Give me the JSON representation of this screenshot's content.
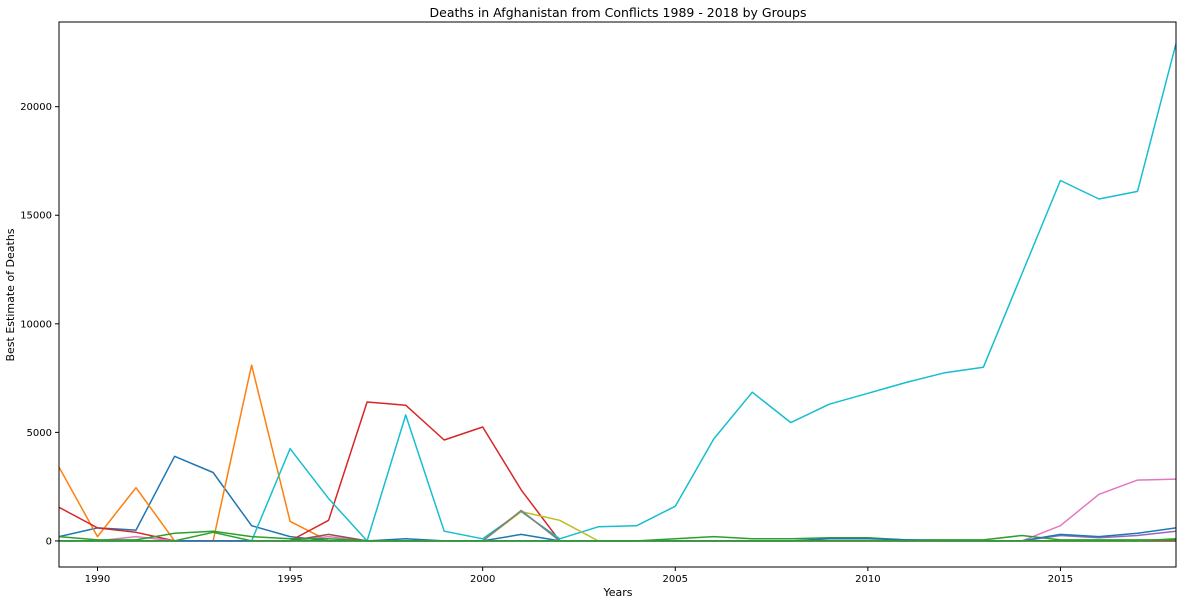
{
  "chart_data": {
    "type": "line",
    "title": "Deaths in Afghanistan from Conflicts 1989 - 2018 by Groups",
    "xlabel": "Years",
    "ylabel": "Best Estimate of Deaths",
    "xlim": [
      1989,
      2018
    ],
    "ylim": [
      -1200,
      23900
    ],
    "x_ticks": [
      "1990",
      "1995",
      "2000",
      "2005",
      "2010",
      "2015"
    ],
    "y_ticks": [
      "0",
      "5000",
      "10000",
      "15000",
      "20000"
    ],
    "grid": false,
    "legend": "none",
    "x": [
      1989,
      1990,
      1991,
      1992,
      1993,
      1994,
      1995,
      1996,
      1997,
      1998,
      1999,
      2000,
      2001,
      2002,
      2003,
      2004,
      2005,
      2006,
      2007,
      2008,
      2009,
      2010,
      2011,
      2012,
      2013,
      2014,
      2015,
      2016,
      2017,
      2018
    ],
    "series": [
      {
        "color": "#1f77b4",
        "values": [
          200,
          600,
          500,
          3900,
          3150,
          700,
          200,
          0,
          0,
          100,
          0,
          0,
          300,
          0,
          0,
          0,
          0,
          0,
          0,
          0,
          0,
          0,
          0,
          0,
          0,
          0,
          0,
          0,
          0,
          0
        ]
      },
      {
        "color": "#ff7f0e",
        "values": [
          3400,
          200,
          2450,
          0,
          0,
          8100,
          900,
          0,
          0,
          0,
          0,
          0,
          0,
          0,
          0,
          0,
          0,
          0,
          0,
          0,
          0,
          0,
          0,
          0,
          0,
          0,
          0,
          0,
          0,
          0
        ]
      },
      {
        "color": "#d62728",
        "values": [
          1550,
          600,
          400,
          0,
          0,
          0,
          0,
          950,
          6400,
          6250,
          4650,
          5250,
          2350,
          0,
          0,
          0,
          0,
          0,
          0,
          0,
          0,
          0,
          0,
          0,
          0,
          0,
          0,
          0,
          0,
          0
        ]
      },
      {
        "color": "#17becf",
        "values": [
          0,
          0,
          0,
          0,
          0,
          0,
          4250,
          1950,
          0,
          5800,
          450,
          100,
          1350,
          100,
          650,
          700,
          1600,
          4700,
          6850,
          5450,
          6300,
          6800,
          7300,
          7750,
          8000,
          12300,
          16600,
          15750,
          16100,
          22900
        ]
      },
      {
        "color": "#bcbd22",
        "values": [
          0,
          0,
          0,
          0,
          0,
          0,
          0,
          0,
          0,
          0,
          0,
          0,
          1350,
          950,
          0,
          0,
          0,
          0,
          0,
          0,
          0,
          0,
          0,
          0,
          0,
          0,
          0,
          0,
          0,
          0
        ]
      },
      {
        "color": "#7f7f7f",
        "values": [
          0,
          0,
          0,
          0,
          0,
          0,
          0,
          0,
          0,
          0,
          0,
          0,
          1400,
          0,
          0,
          0,
          0,
          0,
          0,
          0,
          0,
          0,
          0,
          0,
          0,
          0,
          0,
          0,
          0,
          0
        ]
      },
      {
        "color": "#9467bd",
        "values": [
          0,
          0,
          0,
          0,
          0,
          0,
          0,
          0,
          0,
          0,
          0,
          0,
          0,
          0,
          0,
          0,
          0,
          0,
          0,
          0,
          0,
          0,
          0,
          0,
          0,
          0,
          250,
          150,
          250,
          450
        ]
      },
      {
        "color": "#e377c2",
        "values": [
          0,
          0,
          200,
          0,
          0,
          0,
          0,
          200,
          0,
          0,
          0,
          0,
          0,
          0,
          0,
          0,
          0,
          0,
          0,
          0,
          0,
          0,
          0,
          0,
          0,
          0,
          700,
          2150,
          2800,
          2850
        ]
      },
      {
        "color": "#8c564b",
        "values": [
          0,
          0,
          0,
          0,
          0,
          0,
          0,
          300,
          0,
          0,
          0,
          0,
          0,
          0,
          0,
          0,
          0,
          0,
          0,
          0,
          0,
          0,
          0,
          0,
          0,
          0,
          0,
          0,
          0,
          0
        ]
      },
      {
        "color": "#2ca02c",
        "values": [
          200,
          50,
          50,
          350,
          450,
          200,
          100,
          100,
          0,
          0,
          0,
          0,
          0,
          0,
          0,
          0,
          100,
          200,
          100,
          100,
          150,
          150,
          50,
          50,
          50,
          250,
          50,
          50,
          50,
          50
        ]
      },
      {
        "color": "#1f77b4",
        "values": [
          0,
          0,
          0,
          0,
          0,
          0,
          0,
          0,
          0,
          0,
          0,
          0,
          0,
          0,
          0,
          0,
          0,
          0,
          0,
          0,
          100,
          100,
          50,
          0,
          0,
          0,
          300,
          200,
          350,
          600
        ]
      },
      {
        "color": "#2ca02c",
        "values": [
          0,
          0,
          0,
          0,
          400,
          0,
          0,
          0,
          0,
          0,
          0,
          0,
          0,
          0,
          0,
          0,
          0,
          0,
          0,
          0,
          0,
          0,
          0,
          0,
          0,
          0,
          0,
          0,
          0,
          100
        ]
      }
    ]
  }
}
